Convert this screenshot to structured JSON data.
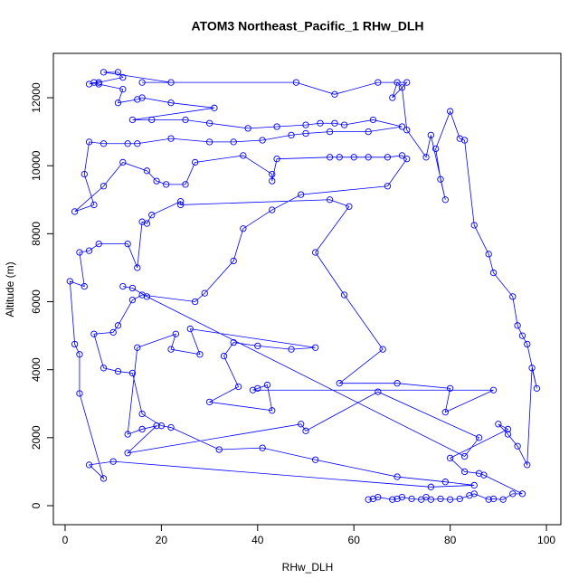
{
  "chart_data": {
    "type": "line",
    "markers": "circle",
    "title": "ATOM3 Northeast_Pacific_1 RHw_DLH",
    "x_label": "RHw_DLH",
    "y_label": "Altitude (m)",
    "color": "#0000ff",
    "xlim": [
      -2.44,
      103.0
    ],
    "ylim": [
      -559,
      13305
    ],
    "xticks": [
      0,
      20,
      40,
      60,
      80,
      100
    ],
    "yticks": [
      0,
      2000,
      4000,
      6000,
      8000,
      10000,
      12000
    ],
    "x": [
      63,
      64,
      65,
      68,
      69,
      70,
      72,
      74,
      75,
      76,
      78,
      80,
      82,
      84,
      85,
      88,
      89,
      91,
      93,
      95,
      87,
      86,
      83,
      80,
      92,
      90,
      92,
      94,
      96,
      97,
      98,
      96,
      95,
      94,
      93,
      89,
      88,
      85,
      83,
      82,
      80,
      77,
      78,
      79,
      76,
      75,
      71,
      70,
      69,
      68,
      71,
      65,
      56,
      48,
      16,
      22,
      8,
      11,
      12,
      7,
      5,
      6,
      7,
      12,
      11,
      15,
      16,
      22,
      31,
      14,
      18,
      25,
      30,
      38,
      44,
      50,
      53,
      56,
      58,
      64,
      70,
      63,
      55,
      50,
      47,
      41,
      35,
      30,
      22,
      15,
      13,
      8,
      5,
      4,
      6,
      2,
      8,
      12,
      17,
      19,
      21,
      25,
      27,
      37,
      43,
      43,
      44,
      55,
      57,
      60,
      63,
      67,
      70,
      71,
      67,
      49,
      43,
      37,
      35,
      29,
      27,
      16,
      14,
      11,
      10,
      6,
      8,
      11,
      14,
      16,
      20,
      22,
      32,
      41,
      52,
      69,
      79,
      85,
      76,
      10,
      5,
      8,
      3,
      3,
      2,
      1,
      4,
      3,
      5,
      7,
      13,
      15,
      16,
      17,
      18,
      24,
      24,
      55,
      59,
      52,
      58,
      66,
      57,
      69,
      80,
      79,
      89,
      39,
      40,
      42,
      43,
      30,
      36,
      33,
      35,
      40,
      47,
      52,
      26,
      28,
      22,
      23,
      15,
      13,
      16,
      19,
      13,
      49,
      50,
      65,
      86,
      83,
      17,
      14,
      12
    ],
    "values": [
      180,
      200,
      250,
      180,
      200,
      250,
      200,
      180,
      250,
      180,
      200,
      180,
      200,
      300,
      350,
      180,
      200,
      180,
      350,
      350,
      900,
      950,
      1000,
      1400,
      2250,
      2400,
      2100,
      1750,
      1200,
      4050,
      3450,
      4750,
      5000,
      5300,
      6150,
      6850,
      7400,
      8250,
      10750,
      10800,
      11600,
      10500,
      9600,
      9000,
      10900,
      10250,
      11050,
      12300,
      12450,
      12000,
      12450,
      12450,
      12100,
      12450,
      12450,
      12450,
      12750,
      12750,
      12600,
      12450,
      12400,
      12450,
      12400,
      12250,
      11850,
      11950,
      12000,
      11850,
      11700,
      11350,
      11350,
      11350,
      11250,
      11100,
      11150,
      11200,
      11250,
      11250,
      11200,
      11350,
      11150,
      11000,
      11000,
      10950,
      10900,
      10750,
      10700,
      10700,
      10800,
      10650,
      10650,
      10650,
      10700,
      9750,
      8850,
      8650,
      9400,
      10100,
      9850,
      9550,
      9450,
      9450,
      10100,
      10300,
      9750,
      9550,
      10200,
      10250,
      10250,
      10250,
      10250,
      10250,
      10300,
      10200,
      9400,
      9150,
      8700,
      8150,
      7200,
      6250,
      6000,
      6200,
      6050,
      5300,
      5100,
      5050,
      4050,
      3950,
      3900,
      2700,
      2350,
      2300,
      1650,
      1700,
      1350,
      850,
      700,
      600,
      550,
      1300,
      1200,
      800,
      3300,
      4450,
      4750,
      6600,
      6450,
      7450,
      7500,
      7700,
      7700,
      7000,
      8350,
      8300,
      8550,
      8950,
      8850,
      9000,
      8800,
      7450,
      6200,
      4600,
      3600,
      3600,
      3450,
      2750,
      3400,
      3400,
      3450,
      3550,
      2800,
      3050,
      3500,
      4400,
      4800,
      4700,
      4600,
      4650,
      5200,
      4450,
      4600,
      5050,
      4650,
      2100,
      2250,
      2350,
      1550,
      2400,
      2200,
      3350,
      2000,
      1450,
      6150,
      6400,
      6450
    ]
  }
}
